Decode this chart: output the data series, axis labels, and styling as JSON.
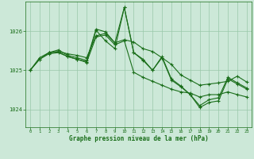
{
  "bg_color": "#cce8d8",
  "plot_bg_color": "#cce8d8",
  "grid_color": "#99c8aa",
  "line_color": "#1a6e1a",
  "xlabel": "Graphe pression niveau de la mer (hPa)",
  "xlabel_color": "#1a6e1a",
  "tick_color": "#1a6e1a",
  "yticks": [
    1024,
    1025,
    1026
  ],
  "xticks": [
    0,
    1,
    2,
    3,
    4,
    5,
    6,
    7,
    8,
    9,
    10,
    11,
    12,
    13,
    14,
    15,
    16,
    17,
    18,
    19,
    20,
    21,
    22,
    23
  ],
  "ylim": [
    1023.55,
    1026.75
  ],
  "xlim": [
    -0.5,
    23.5
  ],
  "line1_x": [
    0,
    1,
    2,
    3,
    4,
    5,
    6,
    7,
    8,
    9,
    10,
    11,
    12,
    13,
    14,
    15,
    16,
    17,
    18,
    19,
    20,
    21,
    22,
    23
  ],
  "line1_y": [
    1025.0,
    1025.32,
    1025.45,
    1025.48,
    1025.42,
    1025.38,
    1025.32,
    1025.88,
    1025.94,
    1025.7,
    1025.78,
    1025.72,
    1025.55,
    1025.48,
    1025.32,
    1025.15,
    1024.88,
    1024.75,
    1024.62,
    1024.65,
    1024.68,
    1024.72,
    1024.85,
    1024.7
  ],
  "line2_x": [
    0,
    1,
    2,
    3,
    4,
    5,
    6,
    7,
    8,
    9,
    10,
    11,
    12,
    13,
    14,
    15,
    16,
    17,
    18,
    19,
    20,
    21,
    22,
    23
  ],
  "line2_y": [
    1025.0,
    1025.28,
    1025.42,
    1025.45,
    1025.35,
    1025.28,
    1025.22,
    1026.02,
    1025.75,
    1025.55,
    1026.6,
    1025.45,
    1025.28,
    1025.0,
    1025.35,
    1024.78,
    1024.6,
    1024.38,
    1024.1,
    1024.25,
    1024.3,
    1024.82,
    1024.68,
    1024.55
  ],
  "line3_x": [
    0,
    1,
    2,
    3,
    4,
    5,
    6,
    7,
    8,
    9,
    10,
    11,
    12,
    13,
    14,
    15,
    16,
    17,
    18,
    19,
    20,
    21,
    22,
    23
  ],
  "line3_y": [
    1025.0,
    1025.28,
    1025.45,
    1025.47,
    1025.35,
    1025.28,
    1025.2,
    1025.85,
    1025.9,
    1025.65,
    1025.75,
    1024.95,
    1024.82,
    1024.72,
    1024.62,
    1024.52,
    1024.45,
    1024.42,
    1024.32,
    1024.38,
    1024.38,
    1024.45,
    1024.38,
    1024.32
  ],
  "line4_x": [
    2,
    3,
    4,
    5,
    6,
    7,
    8,
    9,
    10,
    11,
    12,
    13,
    14,
    15,
    16,
    17,
    18,
    19,
    20,
    21,
    22,
    23
  ],
  "line4_y": [
    1025.45,
    1025.52,
    1025.38,
    1025.32,
    1025.25,
    1026.05,
    1025.98,
    1025.7,
    1026.6,
    1025.45,
    1025.25,
    1025.0,
    1025.32,
    1024.75,
    1024.58,
    1024.38,
    1024.05,
    1024.18,
    1024.22,
    1024.78,
    1024.65,
    1024.52
  ]
}
